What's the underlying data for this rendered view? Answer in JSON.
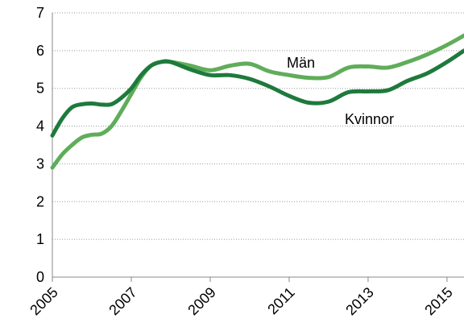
{
  "chart_data": {
    "type": "line",
    "x": [
      2005,
      2005.25,
      2005.5,
      2005.75,
      2006,
      2006.25,
      2006.5,
      2006.75,
      2007,
      2007.25,
      2007.5,
      2007.75,
      2008,
      2008.5,
      2009,
      2009.5,
      2010,
      2010.5,
      2011,
      2011.5,
      2012,
      2012.5,
      2013,
      2013.5,
      2014,
      2014.5,
      2015,
      2015.43
    ],
    "series": [
      {
        "name": "Kvinnor",
        "color": "#1e7a3c",
        "values": [
          3.75,
          4.2,
          4.5,
          4.58,
          4.6,
          4.57,
          4.58,
          4.75,
          5.0,
          5.35,
          5.6,
          5.7,
          5.7,
          5.5,
          5.35,
          5.35,
          5.25,
          5.05,
          4.8,
          4.62,
          4.65,
          4.9,
          4.92,
          4.95,
          5.2,
          5.4,
          5.7,
          6.0
        ]
      },
      {
        "name": "Män",
        "color": "#5fad5a",
        "values": [
          2.9,
          3.25,
          3.5,
          3.7,
          3.77,
          3.8,
          4.0,
          4.4,
          4.85,
          5.3,
          5.6,
          5.7,
          5.7,
          5.6,
          5.48,
          5.6,
          5.65,
          5.45,
          5.35,
          5.28,
          5.3,
          5.55,
          5.58,
          5.55,
          5.7,
          5.9,
          6.15,
          6.4
        ]
      }
    ],
    "annotations": [
      "Män",
      "Kvinnor"
    ],
    "xlim": [
      2005,
      2015.43
    ],
    "xticks": [
      2005,
      2007,
      2009,
      2011,
      2013,
      2015
    ],
    "ylim": [
      0,
      7
    ],
    "yticks": [
      0,
      1,
      2,
      3,
      4,
      5,
      6,
      7
    ],
    "grid": true
  }
}
